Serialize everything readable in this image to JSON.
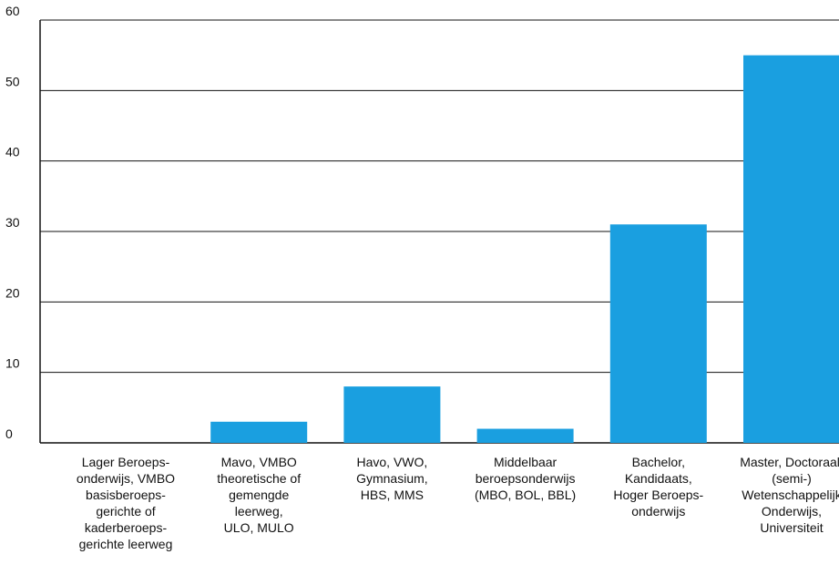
{
  "chart_data": {
    "type": "bar",
    "categories": [
      "Lager Beroeps-\nonderwijs, VMBO\nbasisberoeps-\ngerichte of\nkaderberoeps-\ngerichte leerweg",
      "Mavo, VMBO\ntheoretische of\ngemengde\nleerweg,\nULO, MULO",
      "Havo, VWO,\nGymnasium,\nHBS, MMS",
      "Middelbaar\nberoepsonderwijs\n(MBO, BOL, BBL)",
      "Bachelor,\nKandidaats,\nHoger Beroeps-\nonderwijs",
      "Master, Doctoraal,\n(semi-)\nWetenschappelijk\nOnderwijs,\nUniversiteit"
    ],
    "values": [
      0,
      3,
      8,
      2,
      31,
      55
    ],
    "ylim": [
      0,
      60
    ],
    "yticks": [
      0,
      10,
      20,
      30,
      40,
      50,
      60
    ],
    "grid": true,
    "bar_color": "#1a9fe0"
  }
}
